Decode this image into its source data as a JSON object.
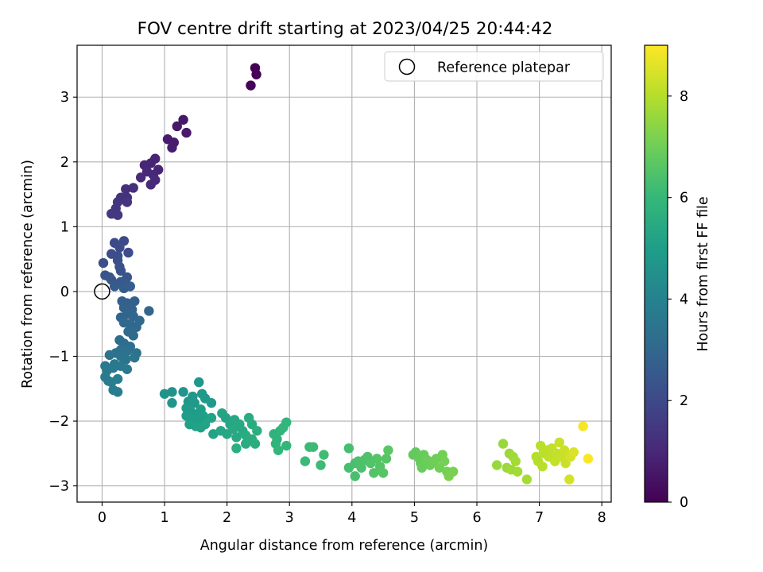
{
  "chart_data": {
    "type": "scatter",
    "title": "FOV centre drift starting at 2023/04/25 20:44:42",
    "xlabel": "Angular distance from reference (arcmin)",
    "ylabel": "Rotation from reference (arcmin)",
    "xlim": [
      -0.4,
      8.15
    ],
    "ylim": [
      -3.25,
      3.8
    ],
    "xticks": [
      0,
      1,
      2,
      3,
      4,
      5,
      6,
      7,
      8
    ],
    "yticks": [
      -3,
      -2,
      -1,
      0,
      1,
      2,
      3
    ],
    "grid": true,
    "legend": {
      "placement": "top-right",
      "entries": [
        "Reference platepar"
      ]
    },
    "reference_point": {
      "x": 0,
      "y": 0,
      "label": "Reference platepar"
    },
    "colorbar": {
      "label": "Hours from first FF file",
      "range": [
        0,
        9
      ],
      "ticks": [
        0,
        2,
        4,
        6,
        8
      ],
      "colormap": "viridis",
      "stops": [
        "#440154",
        "#482878",
        "#3e4989",
        "#31688e",
        "#26828e",
        "#1f9e89",
        "#35b779",
        "#6ece58",
        "#b5de2b",
        "#fde725"
      ]
    },
    "points": [
      {
        "x": 2.45,
        "y": 3.45,
        "h": 0.0
      },
      {
        "x": 2.47,
        "y": 3.35,
        "h": 0.05
      },
      {
        "x": 2.38,
        "y": 3.18,
        "h": 0.1
      },
      {
        "x": 1.3,
        "y": 2.65,
        "h": 0.6
      },
      {
        "x": 1.2,
        "y": 2.55,
        "h": 0.6
      },
      {
        "x": 1.35,
        "y": 2.45,
        "h": 0.65
      },
      {
        "x": 1.05,
        "y": 2.35,
        "h": 0.7
      },
      {
        "x": 1.15,
        "y": 2.3,
        "h": 0.7
      },
      {
        "x": 1.12,
        "y": 2.22,
        "h": 0.75
      },
      {
        "x": 0.85,
        "y": 2.05,
        "h": 0.9
      },
      {
        "x": 0.78,
        "y": 1.98,
        "h": 0.9
      },
      {
        "x": 0.68,
        "y": 1.95,
        "h": 0.95
      },
      {
        "x": 0.9,
        "y": 1.88,
        "h": 0.95
      },
      {
        "x": 0.72,
        "y": 1.85,
        "h": 1.0
      },
      {
        "x": 0.82,
        "y": 1.8,
        "h": 1.0
      },
      {
        "x": 0.62,
        "y": 1.76,
        "h": 1.05
      },
      {
        "x": 0.85,
        "y": 1.72,
        "h": 1.05
      },
      {
        "x": 0.78,
        "y": 1.65,
        "h": 1.1
      },
      {
        "x": 0.5,
        "y": 1.6,
        "h": 1.2
      },
      {
        "x": 0.38,
        "y": 1.58,
        "h": 1.25
      },
      {
        "x": 0.3,
        "y": 1.45,
        "h": 1.3
      },
      {
        "x": 0.4,
        "y": 1.45,
        "h": 1.3
      },
      {
        "x": 0.25,
        "y": 1.38,
        "h": 1.35
      },
      {
        "x": 0.4,
        "y": 1.38,
        "h": 1.35
      },
      {
        "x": 0.22,
        "y": 1.28,
        "h": 1.45
      },
      {
        "x": 0.15,
        "y": 1.2,
        "h": 1.5
      },
      {
        "x": 0.25,
        "y": 1.18,
        "h": 1.5
      },
      {
        "x": 0.35,
        "y": 0.78,
        "h": 2.0
      },
      {
        "x": 0.2,
        "y": 0.75,
        "h": 2.0
      },
      {
        "x": 0.28,
        "y": 0.68,
        "h": 2.05
      },
      {
        "x": 0.42,
        "y": 0.6,
        "h": 2.1
      },
      {
        "x": 0.15,
        "y": 0.58,
        "h": 2.1
      },
      {
        "x": 0.25,
        "y": 0.55,
        "h": 2.15
      },
      {
        "x": 0.25,
        "y": 0.48,
        "h": 2.2
      },
      {
        "x": 0.02,
        "y": 0.44,
        "h": 2.2
      },
      {
        "x": 0.28,
        "y": 0.38,
        "h": 2.25
      },
      {
        "x": 0.3,
        "y": 0.32,
        "h": 2.3
      },
      {
        "x": 0.05,
        "y": 0.25,
        "h": 2.35
      },
      {
        "x": 0.12,
        "y": 0.22,
        "h": 2.4
      },
      {
        "x": 0.4,
        "y": 0.22,
        "h": 2.4
      },
      {
        "x": 0.15,
        "y": 0.18,
        "h": 2.45
      },
      {
        "x": 0.3,
        "y": 0.15,
        "h": 2.5
      },
      {
        "x": 0.38,
        "y": 0.12,
        "h": 2.55
      },
      {
        "x": 0.2,
        "y": 0.08,
        "h": 2.6
      },
      {
        "x": 0.35,
        "y": 0.05,
        "h": 2.6
      },
      {
        "x": 0.45,
        "y": 0.08,
        "h": 2.65
      },
      {
        "x": 0.32,
        "y": -0.15,
        "h": 2.7
      },
      {
        "x": 0.4,
        "y": -0.18,
        "h": 2.75
      },
      {
        "x": 0.52,
        "y": -0.15,
        "h": 2.75
      },
      {
        "x": 0.35,
        "y": -0.25,
        "h": 2.8
      },
      {
        "x": 0.48,
        "y": -0.28,
        "h": 2.85
      },
      {
        "x": 0.4,
        "y": -0.35,
        "h": 2.9
      },
      {
        "x": 0.3,
        "y": -0.4,
        "h": 2.9
      },
      {
        "x": 0.5,
        "y": -0.38,
        "h": 2.95
      },
      {
        "x": 0.75,
        "y": -0.3,
        "h": 2.95
      },
      {
        "x": 0.35,
        "y": -0.48,
        "h": 3.0
      },
      {
        "x": 0.45,
        "y": -0.5,
        "h": 3.0
      },
      {
        "x": 0.6,
        "y": -0.45,
        "h": 3.05
      },
      {
        "x": 0.55,
        "y": -0.55,
        "h": 3.05
      },
      {
        "x": 0.42,
        "y": -0.62,
        "h": 3.1
      },
      {
        "x": 0.5,
        "y": -0.68,
        "h": 3.1
      },
      {
        "x": 0.28,
        "y": -0.75,
        "h": 3.2
      },
      {
        "x": 0.35,
        "y": -0.8,
        "h": 3.2
      },
      {
        "x": 0.45,
        "y": -0.85,
        "h": 3.25
      },
      {
        "x": 0.3,
        "y": -0.9,
        "h": 3.3
      },
      {
        "x": 0.4,
        "y": -0.92,
        "h": 3.3
      },
      {
        "x": 0.22,
        "y": -0.95,
        "h": 3.35
      },
      {
        "x": 0.12,
        "y": -0.98,
        "h": 3.4
      },
      {
        "x": 0.55,
        "y": -0.95,
        "h": 3.4
      },
      {
        "x": 0.3,
        "y": -1.0,
        "h": 3.45
      },
      {
        "x": 0.38,
        "y": -1.05,
        "h": 3.45
      },
      {
        "x": 0.52,
        "y": -1.02,
        "h": 3.5
      },
      {
        "x": 0.05,
        "y": -1.15,
        "h": 3.6
      },
      {
        "x": 0.2,
        "y": -1.12,
        "h": 3.6
      },
      {
        "x": 0.3,
        "y": -1.15,
        "h": 3.65
      },
      {
        "x": 0.4,
        "y": -1.2,
        "h": 3.65
      },
      {
        "x": 0.08,
        "y": -1.22,
        "h": 3.7
      },
      {
        "x": 0.18,
        "y": -1.18,
        "h": 3.7
      },
      {
        "x": 0.05,
        "y": -1.32,
        "h": 3.75
      },
      {
        "x": 0.1,
        "y": -1.38,
        "h": 3.75
      },
      {
        "x": 0.15,
        "y": -1.4,
        "h": 3.8
      },
      {
        "x": 0.25,
        "y": -1.35,
        "h": 3.8
      },
      {
        "x": 0.18,
        "y": -1.52,
        "h": 3.85
      },
      {
        "x": 0.25,
        "y": -1.55,
        "h": 3.85
      },
      {
        "x": 1.0,
        "y": -1.58,
        "h": 4.6
      },
      {
        "x": 1.12,
        "y": -1.55,
        "h": 4.6
      },
      {
        "x": 1.3,
        "y": -1.55,
        "h": 4.65
      },
      {
        "x": 1.12,
        "y": -1.72,
        "h": 4.65
      },
      {
        "x": 1.55,
        "y": -1.4,
        "h": 4.7
      },
      {
        "x": 1.45,
        "y": -1.62,
        "h": 4.75
      },
      {
        "x": 1.38,
        "y": -1.7,
        "h": 4.75
      },
      {
        "x": 1.48,
        "y": -1.72,
        "h": 4.8
      },
      {
        "x": 1.6,
        "y": -1.58,
        "h": 4.8
      },
      {
        "x": 1.65,
        "y": -1.65,
        "h": 4.85
      },
      {
        "x": 1.75,
        "y": -1.72,
        "h": 4.85
      },
      {
        "x": 1.35,
        "y": -1.8,
        "h": 4.9
      },
      {
        "x": 1.42,
        "y": -1.85,
        "h": 4.9
      },
      {
        "x": 1.5,
        "y": -1.9,
        "h": 4.95
      },
      {
        "x": 1.58,
        "y": -1.82,
        "h": 4.95
      },
      {
        "x": 1.35,
        "y": -1.92,
        "h": 5.0
      },
      {
        "x": 1.45,
        "y": -1.98,
        "h": 5.0
      },
      {
        "x": 1.55,
        "y": -2.0,
        "h": 5.05
      },
      {
        "x": 1.62,
        "y": -1.92,
        "h": 5.05
      },
      {
        "x": 1.4,
        "y": -2.05,
        "h": 5.1
      },
      {
        "x": 1.5,
        "y": -2.08,
        "h": 5.1
      },
      {
        "x": 1.58,
        "y": -2.1,
        "h": 5.15
      },
      {
        "x": 1.75,
        "y": -1.95,
        "h": 5.15
      },
      {
        "x": 1.65,
        "y": -2.05,
        "h": 5.2
      },
      {
        "x": 1.78,
        "y": -2.2,
        "h": 5.2
      },
      {
        "x": 1.92,
        "y": -1.88,
        "h": 5.25
      },
      {
        "x": 1.98,
        "y": -1.95,
        "h": 5.25
      },
      {
        "x": 1.9,
        "y": -2.15,
        "h": 5.3
      },
      {
        "x": 2.05,
        "y": -2.05,
        "h": 5.3
      },
      {
        "x": 2.12,
        "y": -1.98,
        "h": 5.35
      },
      {
        "x": 2.0,
        "y": -2.2,
        "h": 5.35
      },
      {
        "x": 2.1,
        "y": -2.12,
        "h": 5.4
      },
      {
        "x": 2.2,
        "y": -2.05,
        "h": 5.4
      },
      {
        "x": 2.15,
        "y": -2.25,
        "h": 5.45
      },
      {
        "x": 2.25,
        "y": -2.15,
        "h": 5.45
      },
      {
        "x": 2.3,
        "y": -2.22,
        "h": 5.5
      },
      {
        "x": 2.35,
        "y": -1.95,
        "h": 5.5
      },
      {
        "x": 2.4,
        "y": -2.05,
        "h": 5.55
      },
      {
        "x": 2.3,
        "y": -2.35,
        "h": 5.55
      },
      {
        "x": 2.4,
        "y": -2.28,
        "h": 5.6
      },
      {
        "x": 2.45,
        "y": -2.35,
        "h": 5.6
      },
      {
        "x": 2.15,
        "y": -2.42,
        "h": 5.65
      },
      {
        "x": 2.48,
        "y": -2.15,
        "h": 5.65
      },
      {
        "x": 2.75,
        "y": -2.2,
        "h": 5.8
      },
      {
        "x": 2.8,
        "y": -2.28,
        "h": 5.8
      },
      {
        "x": 2.85,
        "y": -2.15,
        "h": 5.85
      },
      {
        "x": 2.78,
        "y": -2.35,
        "h": 5.85
      },
      {
        "x": 2.9,
        "y": -2.1,
        "h": 5.9
      },
      {
        "x": 2.95,
        "y": -2.02,
        "h": 5.9
      },
      {
        "x": 2.82,
        "y": -2.45,
        "h": 5.95
      },
      {
        "x": 2.95,
        "y": -2.38,
        "h": 5.95
      },
      {
        "x": 3.25,
        "y": -2.62,
        "h": 6.1
      },
      {
        "x": 3.32,
        "y": -2.4,
        "h": 6.1
      },
      {
        "x": 3.38,
        "y": -2.4,
        "h": 6.15
      },
      {
        "x": 3.5,
        "y": -2.68,
        "h": 6.15
      },
      {
        "x": 3.55,
        "y": -2.52,
        "h": 6.2
      },
      {
        "x": 3.95,
        "y": -2.42,
        "h": 6.3
      },
      {
        "x": 3.95,
        "y": -2.72,
        "h": 6.3
      },
      {
        "x": 4.05,
        "y": -2.65,
        "h": 6.35
      },
      {
        "x": 4.05,
        "y": -2.85,
        "h": 6.35
      },
      {
        "x": 4.1,
        "y": -2.62,
        "h": 6.4
      },
      {
        "x": 4.15,
        "y": -2.72,
        "h": 6.4
      },
      {
        "x": 4.2,
        "y": -2.6,
        "h": 6.45
      },
      {
        "x": 4.25,
        "y": -2.55,
        "h": 6.45
      },
      {
        "x": 4.3,
        "y": -2.65,
        "h": 6.5
      },
      {
        "x": 4.35,
        "y": -2.8,
        "h": 6.5
      },
      {
        "x": 4.4,
        "y": -2.58,
        "h": 6.55
      },
      {
        "x": 4.45,
        "y": -2.7,
        "h": 6.55
      },
      {
        "x": 4.5,
        "y": -2.8,
        "h": 6.6
      },
      {
        "x": 4.55,
        "y": -2.58,
        "h": 6.6
      },
      {
        "x": 4.58,
        "y": -2.45,
        "h": 6.65
      },
      {
        "x": 4.98,
        "y": -2.52,
        "h": 6.8
      },
      {
        "x": 5.02,
        "y": -2.48,
        "h": 6.8
      },
      {
        "x": 5.08,
        "y": -2.58,
        "h": 6.85
      },
      {
        "x": 5.1,
        "y": -2.65,
        "h": 6.85
      },
      {
        "x": 5.12,
        "y": -2.72,
        "h": 6.9
      },
      {
        "x": 5.15,
        "y": -2.52,
        "h": 6.9
      },
      {
        "x": 5.2,
        "y": -2.6,
        "h": 6.95
      },
      {
        "x": 5.25,
        "y": -2.68,
        "h": 6.95
      },
      {
        "x": 5.3,
        "y": -2.62,
        "h": 7.0
      },
      {
        "x": 5.35,
        "y": -2.58,
        "h": 7.0
      },
      {
        "x": 5.4,
        "y": -2.72,
        "h": 7.05
      },
      {
        "x": 5.45,
        "y": -2.52,
        "h": 7.05
      },
      {
        "x": 5.48,
        "y": -2.62,
        "h": 7.1
      },
      {
        "x": 5.52,
        "y": -2.78,
        "h": 7.1
      },
      {
        "x": 5.55,
        "y": -2.85,
        "h": 7.15
      },
      {
        "x": 5.62,
        "y": -2.78,
        "h": 7.15
      },
      {
        "x": 6.32,
        "y": -2.68,
        "h": 7.6
      },
      {
        "x": 6.42,
        "y": -2.35,
        "h": 7.6
      },
      {
        "x": 6.48,
        "y": -2.72,
        "h": 7.65
      },
      {
        "x": 6.52,
        "y": -2.5,
        "h": 7.65
      },
      {
        "x": 6.55,
        "y": -2.75,
        "h": 7.7
      },
      {
        "x": 6.58,
        "y": -2.55,
        "h": 7.7
      },
      {
        "x": 6.62,
        "y": -2.62,
        "h": 7.75
      },
      {
        "x": 6.65,
        "y": -2.78,
        "h": 7.75
      },
      {
        "x": 6.8,
        "y": -2.9,
        "h": 7.8
      },
      {
        "x": 6.95,
        "y": -2.55,
        "h": 8.0
      },
      {
        "x": 6.98,
        "y": -2.62,
        "h": 8.0
      },
      {
        "x": 7.02,
        "y": -2.38,
        "h": 8.05
      },
      {
        "x": 7.05,
        "y": -2.7,
        "h": 8.05
      },
      {
        "x": 7.08,
        "y": -2.5,
        "h": 8.1
      },
      {
        "x": 7.12,
        "y": -2.45,
        "h": 8.1
      },
      {
        "x": 7.15,
        "y": -2.55,
        "h": 8.15
      },
      {
        "x": 7.2,
        "y": -2.42,
        "h": 8.15
      },
      {
        "x": 7.25,
        "y": -2.62,
        "h": 8.2
      },
      {
        "x": 7.28,
        "y": -2.5,
        "h": 8.2
      },
      {
        "x": 7.32,
        "y": -2.33,
        "h": 8.25
      },
      {
        "x": 7.35,
        "y": -2.55,
        "h": 8.25
      },
      {
        "x": 7.4,
        "y": -2.45,
        "h": 8.3
      },
      {
        "x": 7.42,
        "y": -2.65,
        "h": 8.3
      },
      {
        "x": 7.48,
        "y": -2.9,
        "h": 8.4
      },
      {
        "x": 7.5,
        "y": -2.55,
        "h": 8.45
      },
      {
        "x": 7.55,
        "y": -2.48,
        "h": 8.5
      },
      {
        "x": 7.7,
        "y": -2.08,
        "h": 8.9
      },
      {
        "x": 7.78,
        "y": -2.58,
        "h": 8.95
      }
    ]
  }
}
